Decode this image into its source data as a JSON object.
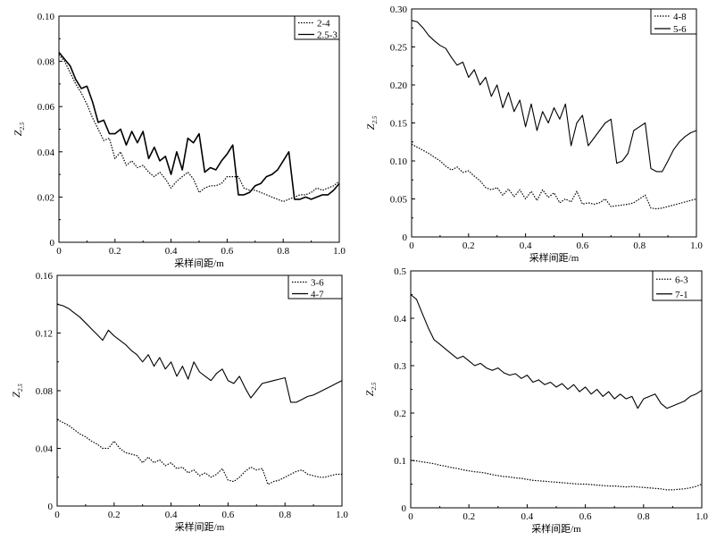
{
  "chart_data": [
    {
      "type": "line",
      "panel": "top-left",
      "xlabel": "采样间距/m",
      "ylabel": {
        "main": "Z",
        "sub": "2.5"
      },
      "xlim": [
        0,
        1.0
      ],
      "ylim": [
        0,
        0.1
      ],
      "xticks": [
        "0",
        "0.2",
        "0.4",
        "0.6",
        "0.8",
        "1.0"
      ],
      "yticks": [
        "0",
        "0.02",
        "0.04",
        "0.06",
        "0.08",
        "0.10"
      ],
      "legend_position": "top-right",
      "series": [
        {
          "name": "2-4",
          "style": "dotted",
          "x": [
            0,
            0.02,
            0.04,
            0.06,
            0.08,
            0.1,
            0.12,
            0.14,
            0.16,
            0.18,
            0.2,
            0.22,
            0.24,
            0.26,
            0.28,
            0.3,
            0.32,
            0.34,
            0.36,
            0.38,
            0.4,
            0.42,
            0.44,
            0.46,
            0.48,
            0.5,
            0.52,
            0.54,
            0.56,
            0.58,
            0.6,
            0.62,
            0.64,
            0.66,
            0.68,
            0.7,
            0.72,
            0.74,
            0.76,
            0.78,
            0.8,
            0.82,
            0.84,
            0.86,
            0.88,
            0.9,
            0.92,
            0.94,
            0.96,
            0.98,
            1.0
          ],
          "y": [
            0.083,
            0.08,
            0.075,
            0.07,
            0.066,
            0.061,
            0.055,
            0.05,
            0.045,
            0.046,
            0.037,
            0.04,
            0.034,
            0.036,
            0.033,
            0.034,
            0.031,
            0.029,
            0.031,
            0.028,
            0.024,
            0.027,
            0.029,
            0.031,
            0.028,
            0.022,
            0.024,
            0.025,
            0.025,
            0.026,
            0.029,
            0.029,
            0.029,
            0.024,
            0.023,
            0.023,
            0.022,
            0.021,
            0.02,
            0.019,
            0.018,
            0.019,
            0.02,
            0.021,
            0.021,
            0.022,
            0.024,
            0.023,
            0.024,
            0.025,
            0.027
          ]
        },
        {
          "name": "2.5-3",
          "style": "solid",
          "x": [
            0,
            0.02,
            0.04,
            0.06,
            0.08,
            0.1,
            0.12,
            0.14,
            0.16,
            0.18,
            0.2,
            0.22,
            0.24,
            0.26,
            0.28,
            0.3,
            0.32,
            0.34,
            0.36,
            0.38,
            0.4,
            0.42,
            0.44,
            0.46,
            0.48,
            0.5,
            0.52,
            0.54,
            0.56,
            0.58,
            0.6,
            0.62,
            0.64,
            0.66,
            0.68,
            0.7,
            0.72,
            0.74,
            0.76,
            0.78,
            0.8,
            0.82,
            0.84,
            0.86,
            0.88,
            0.9,
            0.92,
            0.94,
            0.96,
            0.98,
            1.0
          ],
          "y": [
            0.084,
            0.081,
            0.078,
            0.072,
            0.068,
            0.069,
            0.062,
            0.053,
            0.054,
            0.048,
            0.048,
            0.05,
            0.043,
            0.049,
            0.044,
            0.049,
            0.037,
            0.042,
            0.036,
            0.038,
            0.03,
            0.04,
            0.032,
            0.046,
            0.044,
            0.048,
            0.031,
            0.033,
            0.032,
            0.036,
            0.039,
            0.043,
            0.021,
            0.021,
            0.022,
            0.025,
            0.026,
            0.029,
            0.03,
            0.032,
            0.036,
            0.04,
            0.019,
            0.019,
            0.02,
            0.019,
            0.02,
            0.021,
            0.021,
            0.023,
            0.026
          ]
        }
      ]
    },
    {
      "type": "line",
      "panel": "top-right",
      "xlabel": "采样间距/m",
      "ylabel": {
        "main": "Z",
        "sub": "2.5"
      },
      "xlim": [
        0,
        1.0
      ],
      "ylim": [
        0,
        0.3
      ],
      "xticks": [
        "0",
        "0.2",
        "0.4",
        "0.6",
        "0.8",
        "1.0"
      ],
      "yticks": [
        "0",
        "0.05",
        "0.10",
        "0.15",
        "0.20",
        "0.25",
        "0.30"
      ],
      "legend_position": "top-right",
      "series": [
        {
          "name": "4-8",
          "style": "dotted",
          "x": [
            0,
            0.02,
            0.04,
            0.06,
            0.08,
            0.1,
            0.12,
            0.14,
            0.16,
            0.18,
            0.2,
            0.22,
            0.24,
            0.26,
            0.28,
            0.3,
            0.32,
            0.34,
            0.36,
            0.38,
            0.4,
            0.42,
            0.44,
            0.46,
            0.48,
            0.5,
            0.52,
            0.54,
            0.56,
            0.58,
            0.6,
            0.62,
            0.64,
            0.66,
            0.68,
            0.7,
            0.72,
            0.74,
            0.76,
            0.78,
            0.8,
            0.82,
            0.84,
            0.86,
            0.88,
            0.9,
            0.92,
            0.94,
            0.96,
            0.98,
            1.0
          ],
          "y": [
            0.122,
            0.118,
            0.114,
            0.11,
            0.105,
            0.1,
            0.093,
            0.088,
            0.092,
            0.085,
            0.087,
            0.08,
            0.074,
            0.065,
            0.062,
            0.065,
            0.055,
            0.063,
            0.053,
            0.062,
            0.05,
            0.06,
            0.048,
            0.062,
            0.052,
            0.058,
            0.045,
            0.05,
            0.046,
            0.06,
            0.043,
            0.045,
            0.043,
            0.045,
            0.05,
            0.04,
            0.041,
            0.042,
            0.043,
            0.045,
            0.05,
            0.055,
            0.038,
            0.037,
            0.038,
            0.04,
            0.042,
            0.044,
            0.046,
            0.048,
            0.05
          ]
        },
        {
          "name": "5-6",
          "style": "solid",
          "x": [
            0,
            0.02,
            0.04,
            0.06,
            0.08,
            0.1,
            0.12,
            0.14,
            0.16,
            0.18,
            0.2,
            0.22,
            0.24,
            0.26,
            0.28,
            0.3,
            0.32,
            0.34,
            0.36,
            0.38,
            0.4,
            0.42,
            0.44,
            0.46,
            0.48,
            0.5,
            0.52,
            0.54,
            0.56,
            0.58,
            0.6,
            0.62,
            0.64,
            0.66,
            0.68,
            0.7,
            0.72,
            0.74,
            0.76,
            0.78,
            0.8,
            0.82,
            0.84,
            0.86,
            0.88,
            0.9,
            0.92,
            0.94,
            0.96,
            0.98,
            1.0
          ],
          "y": [
            0.285,
            0.283,
            0.275,
            0.265,
            0.258,
            0.252,
            0.248,
            0.236,
            0.226,
            0.23,
            0.21,
            0.22,
            0.2,
            0.21,
            0.185,
            0.2,
            0.17,
            0.19,
            0.165,
            0.18,
            0.145,
            0.175,
            0.14,
            0.165,
            0.15,
            0.17,
            0.155,
            0.175,
            0.12,
            0.15,
            0.16,
            0.12,
            0.13,
            0.14,
            0.15,
            0.155,
            0.097,
            0.1,
            0.11,
            0.14,
            0.145,
            0.15,
            0.09,
            0.086,
            0.086,
            0.1,
            0.115,
            0.125,
            0.132,
            0.137,
            0.14
          ]
        }
      ]
    },
    {
      "type": "line",
      "panel": "bottom-left",
      "xlabel": "采样间距/m",
      "ylabel": {
        "main": "Z",
        "sub": "2.5"
      },
      "xlim": [
        0,
        1.0
      ],
      "ylim": [
        0,
        0.16
      ],
      "xticks": [
        "0",
        "0.2",
        "0.4",
        "0.6",
        "0.8",
        "1.0"
      ],
      "yticks": [
        "0",
        "0.04",
        "0.08",
        "0.12",
        "0.16"
      ],
      "legend_position": "top-right",
      "series": [
        {
          "name": "3-6",
          "style": "dotted",
          "x": [
            0,
            0.02,
            0.04,
            0.06,
            0.08,
            0.1,
            0.12,
            0.14,
            0.16,
            0.18,
            0.2,
            0.22,
            0.24,
            0.26,
            0.28,
            0.3,
            0.32,
            0.34,
            0.36,
            0.38,
            0.4,
            0.42,
            0.44,
            0.46,
            0.48,
            0.5,
            0.52,
            0.54,
            0.56,
            0.58,
            0.6,
            0.62,
            0.64,
            0.66,
            0.68,
            0.7,
            0.72,
            0.74,
            0.76,
            0.78,
            0.8,
            0.82,
            0.84,
            0.86,
            0.88,
            0.9,
            0.92,
            0.94,
            0.96,
            0.98,
            1.0
          ],
          "y": [
            0.06,
            0.058,
            0.056,
            0.053,
            0.05,
            0.048,
            0.045,
            0.043,
            0.04,
            0.04,
            0.045,
            0.04,
            0.037,
            0.036,
            0.035,
            0.03,
            0.034,
            0.03,
            0.032,
            0.028,
            0.03,
            0.026,
            0.027,
            0.023,
            0.025,
            0.021,
            0.023,
            0.02,
            0.022,
            0.026,
            0.018,
            0.017,
            0.02,
            0.024,
            0.027,
            0.025,
            0.026,
            0.015,
            0.017,
            0.018,
            0.02,
            0.022,
            0.024,
            0.025,
            0.022,
            0.021,
            0.02,
            0.02,
            0.021,
            0.022,
            0.022
          ]
        },
        {
          "name": "4-7",
          "style": "solid",
          "x": [
            0,
            0.02,
            0.04,
            0.06,
            0.08,
            0.1,
            0.12,
            0.14,
            0.16,
            0.18,
            0.2,
            0.22,
            0.24,
            0.26,
            0.28,
            0.3,
            0.32,
            0.34,
            0.36,
            0.38,
            0.4,
            0.42,
            0.44,
            0.46,
            0.48,
            0.5,
            0.52,
            0.54,
            0.56,
            0.58,
            0.6,
            0.62,
            0.64,
            0.66,
            0.68,
            0.7,
            0.72,
            0.74,
            0.76,
            0.78,
            0.8,
            0.82,
            0.84,
            0.86,
            0.88,
            0.9,
            0.92,
            0.94,
            0.96,
            0.98,
            1.0
          ],
          "y": [
            0.14,
            0.139,
            0.137,
            0.134,
            0.131,
            0.127,
            0.123,
            0.119,
            0.115,
            0.122,
            0.118,
            0.115,
            0.112,
            0.108,
            0.105,
            0.1,
            0.105,
            0.097,
            0.103,
            0.095,
            0.1,
            0.09,
            0.097,
            0.088,
            0.1,
            0.093,
            0.09,
            0.087,
            0.092,
            0.095,
            0.087,
            0.085,
            0.09,
            0.082,
            0.075,
            0.08,
            0.085,
            0.086,
            0.087,
            0.088,
            0.089,
            0.072,
            0.072,
            0.074,
            0.076,
            0.077,
            0.079,
            0.081,
            0.083,
            0.085,
            0.087
          ]
        }
      ]
    },
    {
      "type": "line",
      "panel": "bottom-right",
      "xlabel": "采样间距/m",
      "ylabel": {
        "main": "Z",
        "sub": "2.5"
      },
      "xlim": [
        0,
        1.0
      ],
      "ylim": [
        0,
        0.5
      ],
      "xticks": [
        "0",
        "0.2",
        "0.4",
        "0.6",
        "0.8",
        "1.0"
      ],
      "yticks": [
        "0",
        "0.1",
        "0.2",
        "0.3",
        "0.4",
        "0.5"
      ],
      "legend_position": "top-right",
      "series": [
        {
          "name": "6-3",
          "style": "dotted",
          "x": [
            0,
            0.02,
            0.04,
            0.06,
            0.08,
            0.1,
            0.12,
            0.14,
            0.16,
            0.18,
            0.2,
            0.22,
            0.24,
            0.26,
            0.28,
            0.3,
            0.32,
            0.34,
            0.36,
            0.38,
            0.4,
            0.42,
            0.44,
            0.46,
            0.48,
            0.5,
            0.52,
            0.54,
            0.56,
            0.58,
            0.6,
            0.62,
            0.64,
            0.66,
            0.68,
            0.7,
            0.72,
            0.74,
            0.76,
            0.78,
            0.8,
            0.82,
            0.84,
            0.86,
            0.88,
            0.9,
            0.92,
            0.94,
            0.96,
            0.98,
            1.0
          ],
          "y": [
            0.1,
            0.099,
            0.097,
            0.095,
            0.093,
            0.09,
            0.088,
            0.085,
            0.083,
            0.08,
            0.078,
            0.076,
            0.075,
            0.073,
            0.07,
            0.068,
            0.066,
            0.065,
            0.063,
            0.062,
            0.06,
            0.058,
            0.057,
            0.056,
            0.055,
            0.054,
            0.053,
            0.052,
            0.051,
            0.05,
            0.05,
            0.049,
            0.048,
            0.047,
            0.046,
            0.046,
            0.045,
            0.044,
            0.045,
            0.044,
            0.043,
            0.042,
            0.041,
            0.04,
            0.038,
            0.038,
            0.039,
            0.04,
            0.042,
            0.045,
            0.05
          ]
        },
        {
          "name": "7-1",
          "style": "solid",
          "x": [
            0,
            0.02,
            0.04,
            0.06,
            0.08,
            0.1,
            0.12,
            0.14,
            0.16,
            0.18,
            0.2,
            0.22,
            0.24,
            0.26,
            0.28,
            0.3,
            0.32,
            0.34,
            0.36,
            0.38,
            0.4,
            0.42,
            0.44,
            0.46,
            0.48,
            0.5,
            0.52,
            0.54,
            0.56,
            0.58,
            0.6,
            0.62,
            0.64,
            0.66,
            0.68,
            0.7,
            0.72,
            0.74,
            0.76,
            0.78,
            0.8,
            0.82,
            0.84,
            0.86,
            0.88,
            0.9,
            0.92,
            0.94,
            0.96,
            0.98,
            1.0
          ],
          "y": [
            0.45,
            0.44,
            0.41,
            0.38,
            0.355,
            0.345,
            0.335,
            0.325,
            0.315,
            0.32,
            0.31,
            0.3,
            0.305,
            0.295,
            0.29,
            0.295,
            0.285,
            0.28,
            0.283,
            0.273,
            0.28,
            0.265,
            0.27,
            0.26,
            0.265,
            0.255,
            0.262,
            0.25,
            0.26,
            0.245,
            0.255,
            0.24,
            0.25,
            0.235,
            0.245,
            0.23,
            0.24,
            0.23,
            0.235,
            0.21,
            0.23,
            0.235,
            0.24,
            0.22,
            0.21,
            0.215,
            0.22,
            0.225,
            0.235,
            0.24,
            0.248
          ]
        }
      ]
    }
  ]
}
